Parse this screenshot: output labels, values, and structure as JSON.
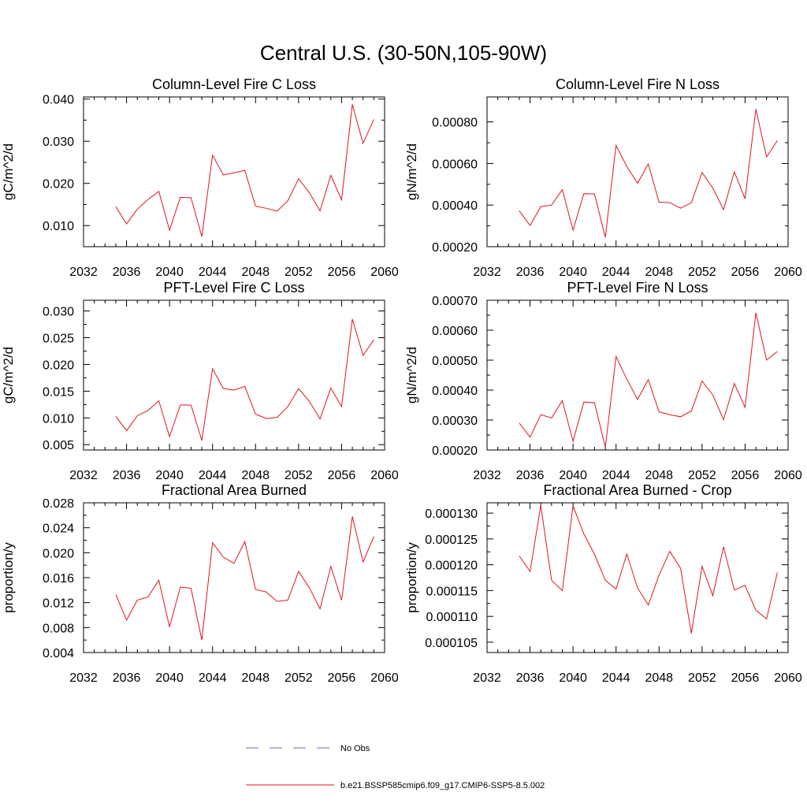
{
  "figure": {
    "title": "Central U.S. (30-50N,105-90W)"
  },
  "legend": {
    "obs_label": "No Obs",
    "obs_color": "#6b6bc8",
    "model_label": "b.e21.BSSP585cmip6.f09_g17.CMIP6-SSP5-8.5.002",
    "model_color": "#e0141c"
  },
  "chart_data": [
    {
      "type": "line",
      "title": "Column-Level Fire C Loss",
      "ylabel": "gC/m^2/d",
      "xlim": [
        2032,
        2060
      ],
      "ylim": [
        0.005,
        0.0405
      ],
      "xticks": [
        "2032",
        "2036",
        "2040",
        "2044",
        "2048",
        "2052",
        "2056",
        "2060"
      ],
      "yticks": [
        "0.010",
        "0.020",
        "0.030",
        "0.040"
      ],
      "series": [
        {
          "x": [
            2035,
            2036,
            2037,
            2038,
            2039,
            2040,
            2041,
            2042,
            2043,
            2044,
            2045,
            2046,
            2047,
            2048,
            2049,
            2050,
            2051,
            2052,
            2053,
            2054,
            2055,
            2056,
            2057,
            2058,
            2059
          ],
          "values": [
            0.0145,
            0.0104,
            0.0139,
            0.0162,
            0.0181,
            0.0089,
            0.0167,
            0.0166,
            0.0074,
            0.0267,
            0.022,
            0.0225,
            0.0231,
            0.0146,
            0.0141,
            0.0134,
            0.0159,
            0.0211,
            0.0178,
            0.0135,
            0.0219,
            0.0161,
            0.0387,
            0.0295,
            0.0352
          ]
        }
      ]
    },
    {
      "type": "line",
      "title": "Column-Level Fire N Loss",
      "ylabel": "gN/m^2/d",
      "xlim": [
        2032,
        2060
      ],
      "ylim": [
        0.0002,
        0.00092
      ],
      "xticks": [
        "2032",
        "2036",
        "2040",
        "2044",
        "2048",
        "2052",
        "2056",
        "2060"
      ],
      "yticks": [
        "0.00020",
        "0.00040",
        "0.00060",
        "0.00080"
      ],
      "series": [
        {
          "x": [
            2035,
            2036,
            2037,
            2038,
            2039,
            2040,
            2041,
            2042,
            2043,
            2044,
            2045,
            2046,
            2047,
            2048,
            2049,
            2050,
            2051,
            2052,
            2053,
            2054,
            2055,
            2056,
            2057,
            2058,
            2059
          ],
          "values": [
            0.000372,
            0.000302,
            0.000393,
            0.0004,
            0.000474,
            0.00028,
            0.000455,
            0.000453,
            0.000245,
            0.000687,
            0.000585,
            0.000505,
            0.000598,
            0.000414,
            0.000412,
            0.000385,
            0.000411,
            0.000557,
            0.000482,
            0.000378,
            0.00056,
            0.00043,
            0.000862,
            0.000632,
            0.00071
          ]
        }
      ]
    },
    {
      "type": "line",
      "title": "PFT-Level Fire C Loss",
      "ylabel": "gC/m^2/d",
      "xlim": [
        2032,
        2060
      ],
      "ylim": [
        0.004,
        0.032
      ],
      "xticks": [
        "2032",
        "2036",
        "2040",
        "2044",
        "2048",
        "2052",
        "2056",
        "2060"
      ],
      "yticks": [
        "0.005",
        "0.010",
        "0.015",
        "0.020",
        "0.025",
        "0.030"
      ],
      "series": [
        {
          "x": [
            2035,
            2036,
            2037,
            2038,
            2039,
            2040,
            2041,
            2042,
            2043,
            2044,
            2045,
            2046,
            2047,
            2048,
            2049,
            2050,
            2051,
            2052,
            2053,
            2054,
            2055,
            2056,
            2057,
            2058,
            2059
          ],
          "values": [
            0.0103,
            0.0076,
            0.0104,
            0.0114,
            0.0132,
            0.0065,
            0.0124,
            0.0124,
            0.0058,
            0.0192,
            0.0155,
            0.0152,
            0.0159,
            0.0107,
            0.0099,
            0.0101,
            0.0121,
            0.0155,
            0.0131,
            0.0098,
            0.0156,
            0.0121,
            0.0285,
            0.0217,
            0.0246
          ]
        }
      ]
    },
    {
      "type": "line",
      "title": "PFT-Level Fire N Loss",
      "ylabel": "gN/m^2/d",
      "xlim": [
        2032,
        2060
      ],
      "ylim": [
        0.0002,
        0.0007
      ],
      "xticks": [
        "2032",
        "2036",
        "2040",
        "2044",
        "2048",
        "2052",
        "2056",
        "2060"
      ],
      "yticks": [
        "0.00020",
        "0.00030",
        "0.00040",
        "0.00050",
        "0.00060",
        "0.00070"
      ],
      "series": [
        {
          "x": [
            2035,
            2036,
            2037,
            2038,
            2039,
            2040,
            2041,
            2042,
            2043,
            2044,
            2045,
            2046,
            2047,
            2048,
            2049,
            2050,
            2051,
            2052,
            2053,
            2054,
            2055,
            2056,
            2057,
            2058,
            2059
          ],
          "values": [
            0.00029,
            0.000243,
            0.000318,
            0.000307,
            0.000365,
            0.000229,
            0.00036,
            0.000358,
            0.000209,
            0.000512,
            0.000436,
            0.000369,
            0.000435,
            0.000327,
            0.000318,
            0.000311,
            0.00033,
            0.00043,
            0.000384,
            0.000301,
            0.000422,
            0.000342,
            0.000658,
            0.0005,
            0.000529
          ]
        }
      ]
    },
    {
      "type": "line",
      "title": "Fractional Area Burned",
      "ylabel": "proportion/y",
      "xlim": [
        2032,
        2060
      ],
      "ylim": [
        0.004,
        0.028
      ],
      "xticks": [
        "2032",
        "2036",
        "2040",
        "2044",
        "2048",
        "2052",
        "2056",
        "2060"
      ],
      "yticks": [
        "0.004",
        "0.008",
        "0.012",
        "0.016",
        "0.020",
        "0.024",
        "0.028"
      ],
      "series": [
        {
          "x": [
            2035,
            2036,
            2037,
            2038,
            2039,
            2040,
            2041,
            2042,
            2043,
            2044,
            2045,
            2046,
            2047,
            2048,
            2049,
            2050,
            2051,
            2052,
            2053,
            2054,
            2055,
            2056,
            2057,
            2058,
            2059
          ],
          "values": [
            0.0133,
            0.0092,
            0.0124,
            0.0129,
            0.0156,
            0.0081,
            0.0145,
            0.0143,
            0.006,
            0.0216,
            0.0193,
            0.0183,
            0.0218,
            0.0141,
            0.0137,
            0.0122,
            0.0124,
            0.017,
            0.0144,
            0.011,
            0.0178,
            0.0124,
            0.0258,
            0.0185,
            0.0226
          ]
        }
      ]
    },
    {
      "type": "line",
      "title": "Fractional Area Burned - Crop",
      "ylabel": "proportion/y",
      "xlim": [
        2032,
        2060
      ],
      "ylim": [
        0.000103,
        0.000132
      ],
      "xticks": [
        "2032",
        "2036",
        "2040",
        "2044",
        "2048",
        "2052",
        "2056",
        "2060"
      ],
      "yticks": [
        "0.000105",
        "0.000110",
        "0.000115",
        "0.000120",
        "0.000125",
        "0.000130"
      ],
      "series": [
        {
          "x": [
            2035,
            2036,
            2037,
            2038,
            2039,
            2040,
            2041,
            2042,
            2043,
            2044,
            2045,
            2046,
            2047,
            2048,
            2049,
            2050,
            2051,
            2052,
            2053,
            2054,
            2055,
            2056,
            2057,
            2058,
            2059
          ],
          "values": [
            0.0001217,
            0.0001187,
            0.0001315,
            0.000117,
            0.000115,
            0.0001314,
            0.000126,
            0.000122,
            0.000117,
            0.0001153,
            0.0001221,
            0.0001155,
            0.0001122,
            0.000118,
            0.0001226,
            0.0001193,
            0.0001067,
            0.0001197,
            0.000114,
            0.0001235,
            0.0001151,
            0.000116,
            0.0001112,
            0.0001095,
            0.0001185
          ]
        }
      ]
    }
  ]
}
